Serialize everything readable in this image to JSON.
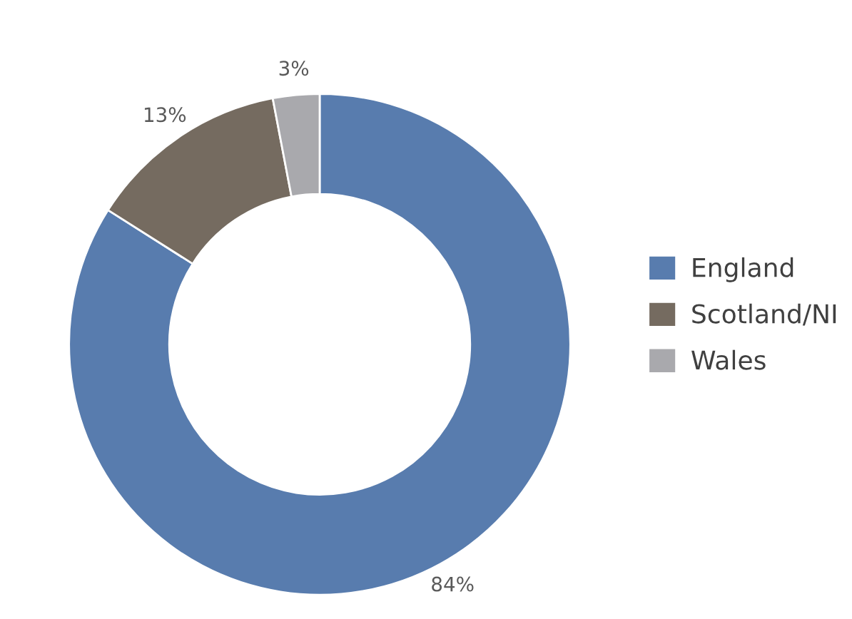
{
  "chart_data": {
    "type": "donut",
    "categories": [
      "England",
      "Scotland/NI",
      "Wales"
    ],
    "values": [
      84,
      13,
      3
    ],
    "colors": [
      "#587cae",
      "#756b60",
      "#a9a9ad"
    ],
    "value_labels": [
      "84%",
      "13%",
      "3%"
    ],
    "legend": "right"
  }
}
